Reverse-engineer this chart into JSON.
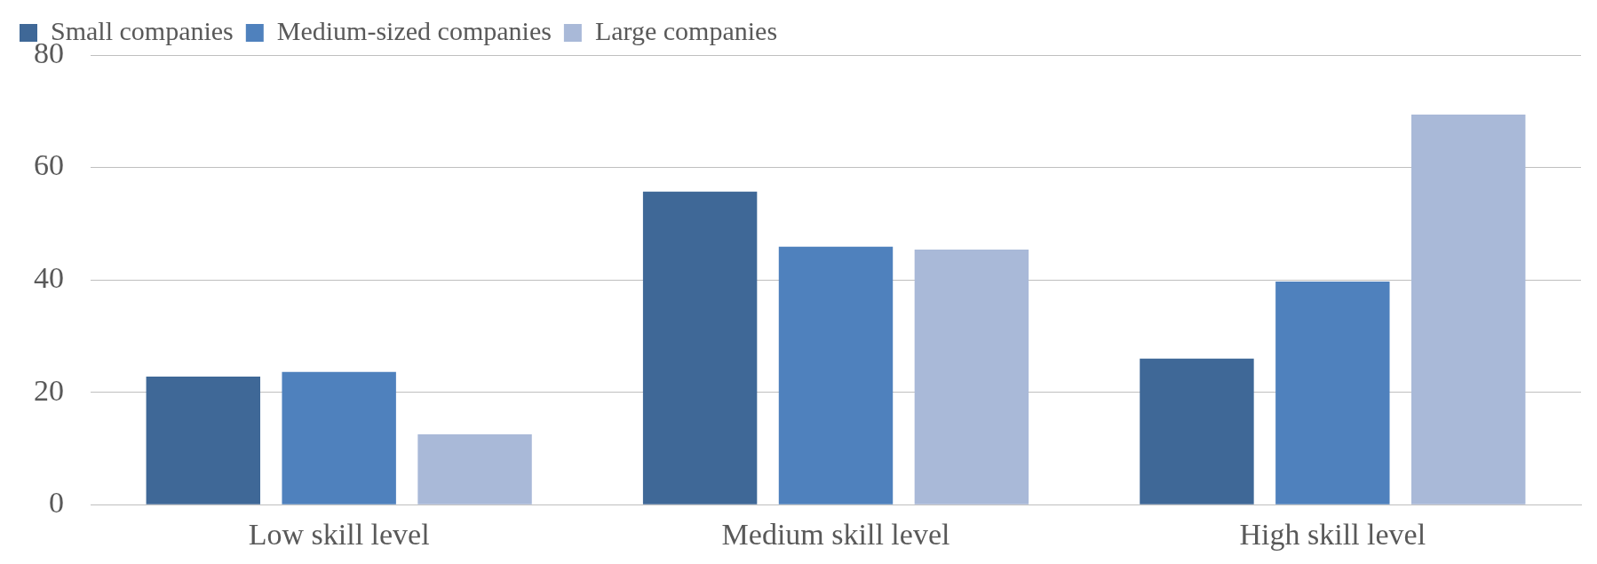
{
  "chart_data": {
    "type": "bar",
    "categories": [
      "Low skill level",
      "Medium skill level",
      "High skill level"
    ],
    "series": [
      {
        "name": "Small companies",
        "color": "#3f6897",
        "values": [
          22.8,
          55.7,
          26
        ]
      },
      {
        "name": "Medium-sized companies",
        "color": "#4f81bd",
        "values": [
          23.6,
          45.9,
          39.7
        ]
      },
      {
        "name": "Large companies",
        "color": "#a9b9d8",
        "values": [
          12.5,
          45.4,
          69.4
        ]
      }
    ],
    "ylim": [
      0,
      80
    ],
    "yticks": [
      0,
      20,
      40,
      60,
      80
    ],
    "grid": "y",
    "legend": "top left"
  }
}
